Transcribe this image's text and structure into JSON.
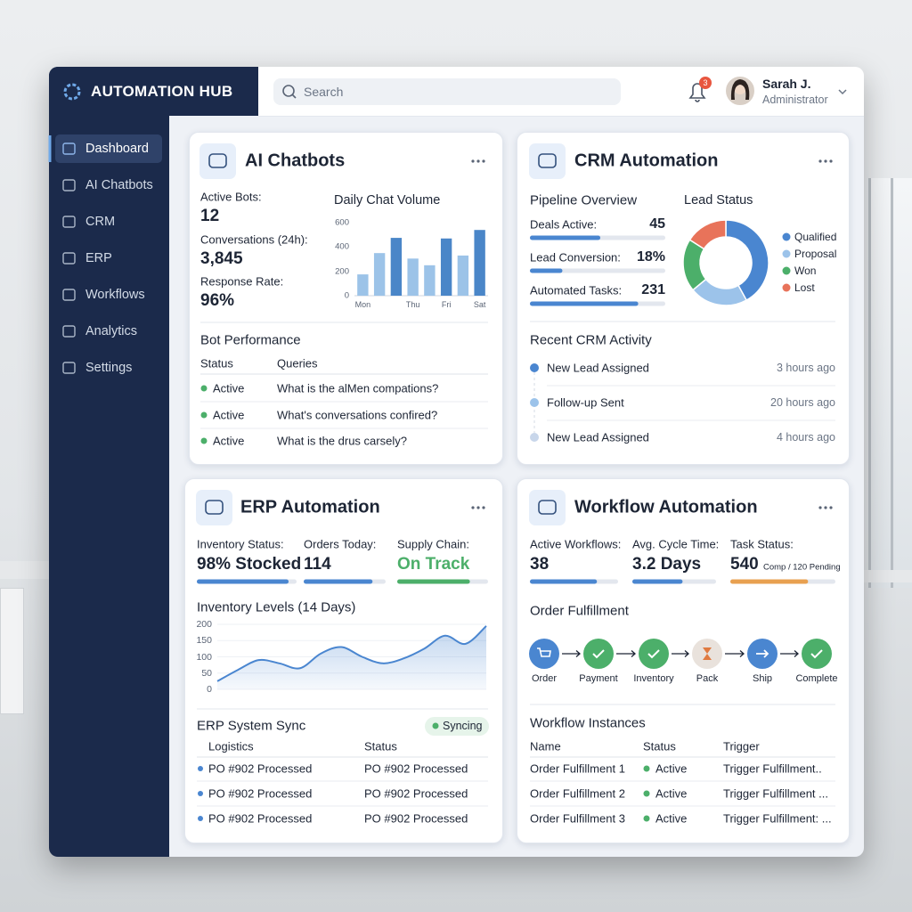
{
  "header": {
    "brand": "AUTOMATION HUB",
    "search": "Search",
    "notifications": 3,
    "user_name": "Sarah J.",
    "user_role": "Administrator"
  },
  "sidebar": {
    "items": [
      "Dashboard",
      "AI Chatbots",
      "CRM",
      "ERP",
      "Workflows",
      "Analytics",
      "Settings"
    ],
    "active": 0
  },
  "chatbots": {
    "title": "AI Chatbots",
    "stats": [
      {
        "label": "Active Bots:",
        "value": "12"
      },
      {
        "label": "Conversations (24h):",
        "value": "3,845"
      },
      {
        "label": "Response Rate:",
        "value": "96%"
      }
    ],
    "performance": {
      "title": "Bot Performance",
      "columns": [
        "Status",
        "Queries"
      ],
      "rows": [
        [
          "Active",
          "What is the alMen compations?"
        ],
        [
          "Active",
          "What's conversations confired?"
        ],
        [
          "Active",
          "What is the drus carsely?"
        ]
      ]
    }
  },
  "crm": {
    "title": "CRM Automation",
    "pipeline_title": "Pipeline Overview",
    "pipeline": [
      {
        "label": "Deals Active:",
        "value": "45",
        "progress": 52
      },
      {
        "label": "Lead Conversion:",
        "value": "18%",
        "progress": 24
      },
      {
        "label": "Automated Tasks:",
        "value": "231",
        "progress": 80
      }
    ],
    "activity_title": "Recent CRM Activity",
    "activity": [
      {
        "text": "New Lead Assigned",
        "time": "3 hours ago",
        "color": "#4a86d0"
      },
      {
        "text": "Follow-up Sent",
        "time": "20 hours ago",
        "color": "#9cc3ea"
      },
      {
        "text": "New Lead Assigned",
        "time": "4 hours ago",
        "color": "#c8d6ea"
      }
    ]
  },
  "erp": {
    "title": "ERP Automation",
    "stats": [
      {
        "label": "Inventory Status:",
        "value": "98% Stocked",
        "progress": 92,
        "color": "#4a86d0"
      },
      {
        "label": "Orders Today:",
        "value": "114",
        "progress": 84,
        "color": "#4a86d0"
      },
      {
        "label": "Supply Chain:",
        "value": "On Track",
        "progress": 80,
        "color": "#4caf6a"
      }
    ],
    "sync_title": "ERP System Sync",
    "sync_status": "Syncing",
    "columns": [
      "Logistics",
      "Status"
    ],
    "rows": [
      [
        "PO #902 Processed",
        "PO #902 Processed"
      ],
      [
        "PO #902 Processed",
        "PO #902 Processed"
      ],
      [
        "PO #902 Processed",
        "PO #902 Processed"
      ]
    ]
  },
  "workflow": {
    "title": "Workflow Automation",
    "stats": [
      {
        "label": "Active Workflows:",
        "value": "38",
        "progress": 76,
        "color": "#4a86d0"
      },
      {
        "label": "Avg. Cycle Time:",
        "value": "3.2 Days",
        "progress": 60,
        "color": "#4a86d0"
      },
      {
        "label": "Task Status:",
        "value": "540",
        "note": "Comp / 120 Pending",
        "progress": 74,
        "color": "#e8a050"
      }
    ],
    "process_title": "Order Fulfillment",
    "steps": [
      {
        "label": "Order",
        "color": "#4a86d0"
      },
      {
        "label": "Payment",
        "color": "#4caf6a"
      },
      {
        "label": "Inventory",
        "color": "#4caf6a"
      },
      {
        "label": "Pack",
        "color": "#e9e2dc"
      },
      {
        "label": "Ship",
        "color": "#4a86d0"
      },
      {
        "label": "Complete",
        "color": "#4caf6a"
      }
    ],
    "instances_title": "Workflow Instances",
    "columns": [
      "Name",
      "Status",
      "Trigger"
    ],
    "rows": [
      [
        "Order Fulfillment 1",
        "Active",
        "Trigger Fulfillment.."
      ],
      [
        "Order Fulfillment 2",
        "Active",
        "Trigger Fulfillment ..."
      ],
      [
        "Order Fulfillment 3",
        "Active",
        "Trigger Fulfillment: ..."
      ]
    ]
  },
  "chart_data": [
    {
      "type": "bar",
      "title": "Daily Chat Volume",
      "categories": [
        "Mon",
        null,
        null,
        "Thu",
        null,
        "Fri",
        null,
        "Sat"
      ],
      "values": [
        175,
        350,
        475,
        305,
        250,
        470,
        330,
        540
      ],
      "colors": [
        "#9cc3e8",
        "#9cc3e8",
        "#4a86c8",
        "#9cc3e8",
        "#9cc3e8",
        "#4a86c8",
        "#9cc3e8",
        "#4a86c8"
      ],
      "ylim": [
        0,
        600
      ],
      "yticks": [
        0,
        200,
        400,
        600
      ]
    },
    {
      "type": "pie",
      "title": "Lead Status",
      "donut": true,
      "categories": [
        "Qualified",
        "Proposal",
        "Won",
        "Lost"
      ],
      "values": [
        42,
        22,
        20,
        16
      ],
      "colors": [
        "#4a86d0",
        "#9cc3ea",
        "#4caf6a",
        "#e8735a"
      ],
      "legend": "right"
    },
    {
      "type": "area",
      "title": "Inventory Levels (14 Days)",
      "categories": [
        null,
        null,
        null,
        null,
        null,
        null,
        null,
        null,
        null,
        null,
        null,
        null,
        null,
        null
      ],
      "values": [
        25,
        60,
        90,
        80,
        65,
        110,
        130,
        100,
        80,
        95,
        125,
        165,
        140,
        195
      ],
      "color": "#4a86d0",
      "ylim": [
        0,
        200
      ],
      "yticks": [
        0,
        50,
        100,
        150,
        200
      ],
      "grid": true
    }
  ]
}
